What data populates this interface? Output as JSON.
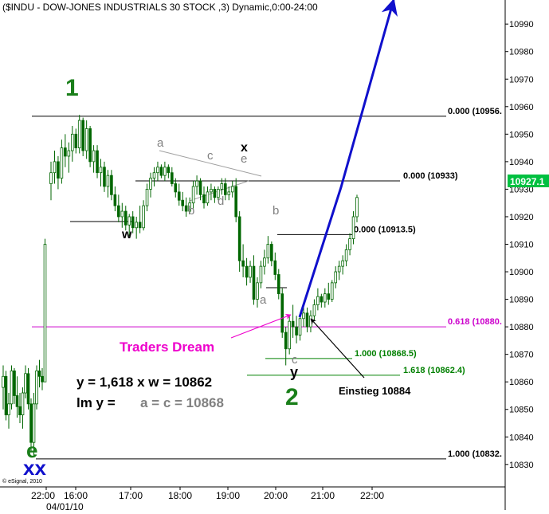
{
  "chart_data": {
    "type": "candlestick",
    "title": "($INDU - DOW-JONES INDUSTRIALS 30 STOCK ,3) Dynamic,0:00-24:00",
    "credit": "© eSignal, 2010",
    "date_label": "04/01/10",
    "ylim": [
      10823,
      10997
    ],
    "x_ticks": [
      "22:00",
      "16:00",
      "17:00",
      "18:00",
      "19:00",
      "20:00",
      "21:00",
      "22:00"
    ],
    "y_ticks": [
      10830,
      10840,
      10850,
      10860,
      10870,
      10880,
      10890,
      10900,
      10910,
      10920,
      10930,
      10940,
      10950,
      10960,
      10970,
      10980,
      10990
    ],
    "last_price_label": "10927.1",
    "last_price": 10927.1,
    "levels": [
      {
        "label": "0.000 (10956.",
        "value": 10956.5,
        "color": "#000000"
      },
      {
        "label": "0.000 (10933)",
        "value": 10933,
        "color": "#000000"
      },
      {
        "label": "0.000 (10913.5)",
        "value": 10913.5,
        "color": "#000000"
      },
      {
        "label": "0.618 (10880.",
        "value": 10880,
        "color": "#cc00cc"
      },
      {
        "label": "1.000 (10868.5)",
        "value": 10868.5,
        "color": "#008000"
      },
      {
        "label": "1.618 (10862.4)",
        "value": 10862.4,
        "color": "#008000"
      },
      {
        "label": "1.000 (10832.",
        "value": 10832,
        "color": "#000000"
      }
    ],
    "wave_labels": {
      "w1": "1",
      "w2": "2",
      "e": "e",
      "xx": "xx",
      "w": "w",
      "x": "x",
      "y": "y",
      "a_top": "a",
      "b_low": "b",
      "c_top": "c",
      "d_low": "d",
      "e_top": "e",
      "b2": "b",
      "a2": "a",
      "c2": "c"
    },
    "annotations": {
      "traders_dream": "Traders Dream",
      "entry": "Einstieg 10884",
      "formula1": "y = 1,618 x w = 10862",
      "formula2_prefix": "lm y =",
      "formula2_rest": "a = c = 10868"
    },
    "colors": {
      "candle": "#006600",
      "green_label": "#1a7f1a",
      "blue": "#1010cc",
      "gray": "#808080",
      "magenta": "#ee00cc"
    },
    "candles": [
      {
        "o": 10858,
        "h": 10866,
        "l": 10850,
        "c": 10862
      },
      {
        "o": 10862,
        "h": 10864,
        "l": 10846,
        "c": 10848
      },
      {
        "o": 10848,
        "h": 10856,
        "l": 10843,
        "c": 10852
      },
      {
        "o": 10852,
        "h": 10866,
        "l": 10850,
        "c": 10864
      },
      {
        "o": 10864,
        "h": 10865,
        "l": 10852,
        "c": 10855
      },
      {
        "o": 10855,
        "h": 10862,
        "l": 10847,
        "c": 10851
      },
      {
        "o": 10851,
        "h": 10856,
        "l": 10845,
        "c": 10848
      },
      {
        "o": 10848,
        "h": 10858,
        "l": 10843,
        "c": 10856
      },
      {
        "o": 10856,
        "h": 10866,
        "l": 10854,
        "c": 10863
      },
      {
        "o": 10863,
        "h": 10865,
        "l": 10850,
        "c": 10852
      },
      {
        "o": 10852,
        "h": 10854,
        "l": 10835,
        "c": 10838
      },
      {
        "o": 10838,
        "h": 10856,
        "l": 10833,
        "c": 10852
      },
      {
        "o": 10852,
        "h": 10866,
        "l": 10850,
        "c": 10864
      },
      {
        "o": 10864,
        "h": 10868,
        "l": 10858,
        "c": 10862
      },
      {
        "o": 10862,
        "h": 10865,
        "l": 10857,
        "c": 10860
      },
      {
        "o": 10860,
        "h": 10912,
        "l": 10860,
        "c": 10910
      },
      {
        "o": 10932,
        "h": 10940,
        "l": 10926,
        "c": 10936
      },
      {
        "o": 10936,
        "h": 10944,
        "l": 10932,
        "c": 10940
      },
      {
        "o": 10940,
        "h": 10942,
        "l": 10930,
        "c": 10934
      },
      {
        "o": 10934,
        "h": 10948,
        "l": 10932,
        "c": 10945
      },
      {
        "o": 10945,
        "h": 10950,
        "l": 10938,
        "c": 10942
      },
      {
        "o": 10942,
        "h": 10947,
        "l": 10936,
        "c": 10944
      },
      {
        "o": 10944,
        "h": 10953,
        "l": 10940,
        "c": 10950
      },
      {
        "o": 10950,
        "h": 10952,
        "l": 10943,
        "c": 10945
      },
      {
        "o": 10945,
        "h": 10957,
        "l": 10943,
        "c": 10955
      },
      {
        "o": 10955,
        "h": 10956,
        "l": 10942,
        "c": 10944
      },
      {
        "o": 10944,
        "h": 10955,
        "l": 10941,
        "c": 10952
      },
      {
        "o": 10952,
        "h": 10953,
        "l": 10938,
        "c": 10940
      },
      {
        "o": 10940,
        "h": 10946,
        "l": 10936,
        "c": 10944
      },
      {
        "o": 10944,
        "h": 10946,
        "l": 10934,
        "c": 10936
      },
      {
        "o": 10936,
        "h": 10941,
        "l": 10931,
        "c": 10938
      },
      {
        "o": 10938,
        "h": 10940,
        "l": 10929,
        "c": 10931
      },
      {
        "o": 10931,
        "h": 10937,
        "l": 10927,
        "c": 10935
      },
      {
        "o": 10935,
        "h": 10937,
        "l": 10926,
        "c": 10928
      },
      {
        "o": 10928,
        "h": 10931,
        "l": 10922,
        "c": 10924
      },
      {
        "o": 10924,
        "h": 10928,
        "l": 10918,
        "c": 10920
      },
      {
        "o": 10920,
        "h": 10925,
        "l": 10916,
        "c": 10922
      },
      {
        "o": 10922,
        "h": 10924,
        "l": 10915,
        "c": 10917
      },
      {
        "o": 10917,
        "h": 10921,
        "l": 10913,
        "c": 10920
      },
      {
        "o": 10920,
        "h": 10922,
        "l": 10914,
        "c": 10916
      },
      {
        "o": 10916,
        "h": 10920,
        "l": 10912,
        "c": 10918
      },
      {
        "o": 10918,
        "h": 10924,
        "l": 10914,
        "c": 10916
      },
      {
        "o": 10916,
        "h": 10926,
        "l": 10915,
        "c": 10924
      },
      {
        "o": 10924,
        "h": 10932,
        "l": 10922,
        "c": 10930
      },
      {
        "o": 10930,
        "h": 10936,
        "l": 10927,
        "c": 10934
      },
      {
        "o": 10934,
        "h": 10938,
        "l": 10931,
        "c": 10936
      },
      {
        "o": 10936,
        "h": 10940,
        "l": 10933,
        "c": 10938
      },
      {
        "o": 10938,
        "h": 10939,
        "l": 10934,
        "c": 10935
      },
      {
        "o": 10935,
        "h": 10940,
        "l": 10933,
        "c": 10938
      },
      {
        "o": 10938,
        "h": 10939,
        "l": 10934,
        "c": 10936
      },
      {
        "o": 10936,
        "h": 10938,
        "l": 10931,
        "c": 10932
      },
      {
        "o": 10932,
        "h": 10934,
        "l": 10927,
        "c": 10929
      },
      {
        "o": 10929,
        "h": 10932,
        "l": 10924,
        "c": 10926
      },
      {
        "o": 10926,
        "h": 10929,
        "l": 10922,
        "c": 10924
      },
      {
        "o": 10924,
        "h": 10927,
        "l": 10920,
        "c": 10922
      },
      {
        "o": 10922,
        "h": 10927,
        "l": 10921,
        "c": 10925
      },
      {
        "o": 10925,
        "h": 10933,
        "l": 10923,
        "c": 10931
      },
      {
        "o": 10931,
        "h": 10935,
        "l": 10928,
        "c": 10933
      },
      {
        "o": 10933,
        "h": 10934,
        "l": 10926,
        "c": 10928
      },
      {
        "o": 10928,
        "h": 10931,
        "l": 10923,
        "c": 10925
      },
      {
        "o": 10925,
        "h": 10931,
        "l": 10924,
        "c": 10929
      },
      {
        "o": 10929,
        "h": 10932,
        "l": 10926,
        "c": 10930
      },
      {
        "o": 10930,
        "h": 10931,
        "l": 10925,
        "c": 10927
      },
      {
        "o": 10927,
        "h": 10931,
        "l": 10926,
        "c": 10930
      },
      {
        "o": 10930,
        "h": 10934,
        "l": 10928,
        "c": 10932
      },
      {
        "o": 10932,
        "h": 10934,
        "l": 10926,
        "c": 10928
      },
      {
        "o": 10928,
        "h": 10931,
        "l": 10926,
        "c": 10929
      },
      {
        "o": 10929,
        "h": 10933,
        "l": 10927,
        "c": 10931
      },
      {
        "o": 10931,
        "h": 10934,
        "l": 10918,
        "c": 10920
      },
      {
        "o": 10920,
        "h": 10922,
        "l": 10900,
        "c": 10904
      },
      {
        "o": 10904,
        "h": 10910,
        "l": 10898,
        "c": 10902
      },
      {
        "o": 10902,
        "h": 10905,
        "l": 10895,
        "c": 10898
      },
      {
        "o": 10898,
        "h": 10904,
        "l": 10896,
        "c": 10902
      },
      {
        "o": 10902,
        "h": 10906,
        "l": 10888,
        "c": 10890
      },
      {
        "o": 10890,
        "h": 10898,
        "l": 10887,
        "c": 10896
      },
      {
        "o": 10896,
        "h": 10904,
        "l": 10894,
        "c": 10902
      },
      {
        "o": 10902,
        "h": 10908,
        "l": 10899,
        "c": 10905
      },
      {
        "o": 10905,
        "h": 10913,
        "l": 10903,
        "c": 10910
      },
      {
        "o": 10910,
        "h": 10911,
        "l": 10902,
        "c": 10904
      },
      {
        "o": 10904,
        "h": 10907,
        "l": 10897,
        "c": 10899
      },
      {
        "o": 10899,
        "h": 10901,
        "l": 10890,
        "c": 10892
      },
      {
        "o": 10892,
        "h": 10894,
        "l": 10876,
        "c": 10878
      },
      {
        "o": 10878,
        "h": 10880,
        "l": 10866,
        "c": 10872
      },
      {
        "o": 10872,
        "h": 10884,
        "l": 10870,
        "c": 10882
      },
      {
        "o": 10882,
        "h": 10888,
        "l": 10876,
        "c": 10880
      },
      {
        "o": 10880,
        "h": 10884,
        "l": 10874,
        "c": 10877
      },
      {
        "o": 10877,
        "h": 10885,
        "l": 10875,
        "c": 10883
      },
      {
        "o": 10883,
        "h": 10888,
        "l": 10880,
        "c": 10885
      },
      {
        "o": 10885,
        "h": 10887,
        "l": 10878,
        "c": 10880
      },
      {
        "o": 10880,
        "h": 10886,
        "l": 10878,
        "c": 10884
      },
      {
        "o": 10884,
        "h": 10890,
        "l": 10882,
        "c": 10888
      },
      {
        "o": 10888,
        "h": 10894,
        "l": 10886,
        "c": 10891
      },
      {
        "o": 10891,
        "h": 10892,
        "l": 10887,
        "c": 10889
      },
      {
        "o": 10889,
        "h": 10894,
        "l": 10887,
        "c": 10892
      },
      {
        "o": 10892,
        "h": 10896,
        "l": 10888,
        "c": 10890
      },
      {
        "o": 10890,
        "h": 10897,
        "l": 10889,
        "c": 10896
      },
      {
        "o": 10896,
        "h": 10902,
        "l": 10894,
        "c": 10900
      },
      {
        "o": 10900,
        "h": 10904,
        "l": 10897,
        "c": 10902
      },
      {
        "o": 10902,
        "h": 10906,
        "l": 10899,
        "c": 10904
      },
      {
        "o": 10904,
        "h": 10910,
        "l": 10902,
        "c": 10908
      },
      {
        "o": 10908,
        "h": 10914,
        "l": 10906,
        "c": 10912
      },
      {
        "o": 10912,
        "h": 10922,
        "l": 10910,
        "c": 10920
      },
      {
        "o": 10920,
        "h": 10928,
        "l": 10918,
        "c": 10927
      }
    ]
  }
}
